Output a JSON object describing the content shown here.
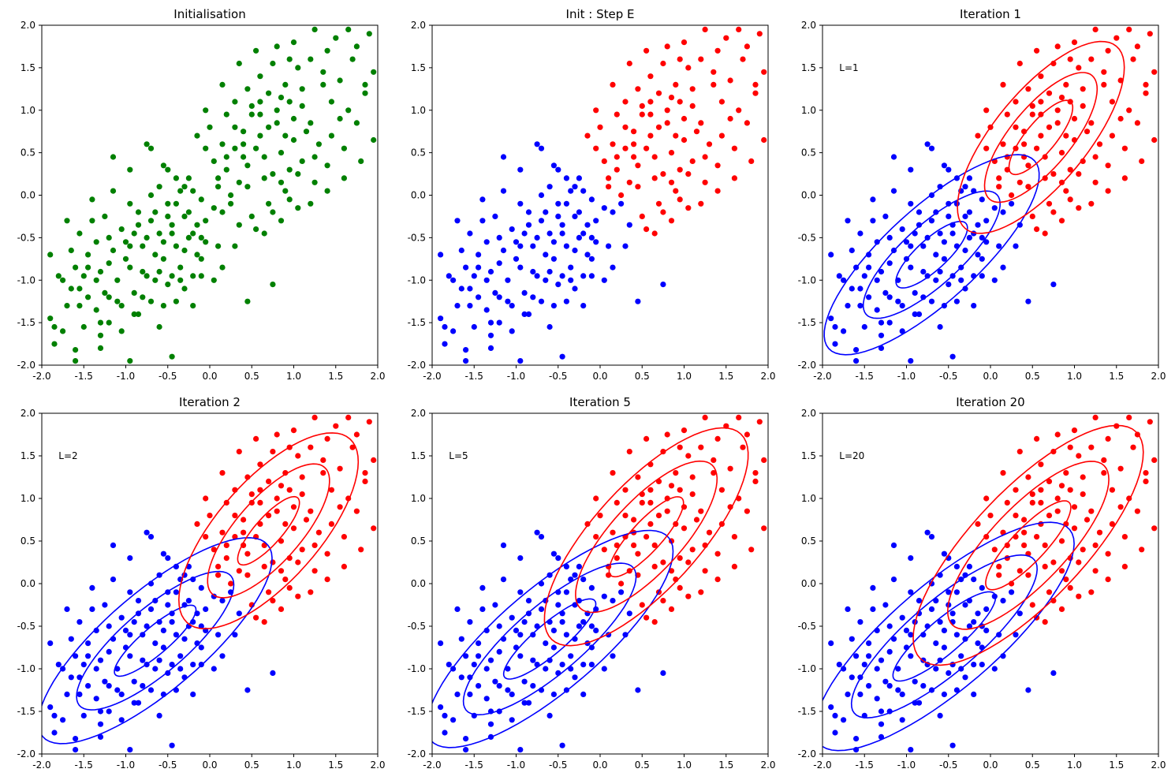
{
  "colors": {
    "green": "#008000",
    "blue": "#0000ff",
    "red": "#ff0000",
    "axis": "#000000"
  },
  "chart_data": [
    {
      "type": "scatter",
      "title": "Initialisation",
      "annotation": "",
      "xlim": [
        -2,
        2
      ],
      "ylim": [
        -2,
        2
      ],
      "xticks": [
        "-2.0",
        "-1.5",
        "-1.0",
        "-0.5",
        "0.0",
        "0.5",
        "1.0",
        "1.5",
        "2.0"
      ],
      "yticks": [
        "-2.0",
        "-1.5",
        "-1.0",
        "-0.5",
        "0.0",
        "0.5",
        "1.0",
        "1.5",
        "2.0"
      ],
      "coloring": "green",
      "ellipses": []
    },
    {
      "type": "scatter",
      "title": "Init : Step E",
      "annotation": "",
      "xlim": [
        -2,
        2
      ],
      "ylim": [
        -2,
        2
      ],
      "xticks": [
        "-2.0",
        "-1.5",
        "-1.0",
        "-0.5",
        "0.0",
        "0.5",
        "1.0",
        "1.5",
        "2.0"
      ],
      "yticks": [
        "-2.0",
        "-1.5",
        "-1.0",
        "-0.5",
        "0.0",
        "0.5",
        "1.0",
        "1.5",
        "2.0"
      ],
      "coloring": "split",
      "ellipses": []
    },
    {
      "type": "scatter",
      "title": "Iteration 1",
      "annotation": "L=1",
      "xlim": [
        -2,
        2
      ],
      "ylim": [
        -2,
        2
      ],
      "xticks": [
        "-2.0",
        "-1.5",
        "-1.0",
        "-0.5",
        "0.0",
        "0.5",
        "1.0",
        "1.5",
        "2.0"
      ],
      "yticks": [
        "-2.0",
        "-1.5",
        "-1.0",
        "-0.5",
        "0.0",
        "0.5",
        "1.0",
        "1.5",
        "2.0"
      ],
      "coloring": "split",
      "ellipses": [
        {
          "cluster": "blue",
          "cx": -0.7,
          "cy": -0.7,
          "rx": 0.55,
          "ry": 0.18,
          "angle": 42
        },
        {
          "cluster": "blue",
          "cx": -0.7,
          "cy": -0.7,
          "rx": 1.05,
          "ry": 0.35,
          "angle": 42
        },
        {
          "cluster": "blue",
          "cx": -0.7,
          "cy": -0.7,
          "rx": 1.65,
          "ry": 0.55,
          "angle": 42
        },
        {
          "cluster": "red",
          "cx": 0.6,
          "cy": 0.68,
          "rx": 0.55,
          "ry": 0.18,
          "angle": 50
        },
        {
          "cluster": "red",
          "cx": 0.6,
          "cy": 0.68,
          "rx": 0.95,
          "ry": 0.36,
          "angle": 50
        },
        {
          "cluster": "red",
          "cx": 0.6,
          "cy": 0.68,
          "rx": 1.4,
          "ry": 0.55,
          "angle": 50
        }
      ]
    },
    {
      "type": "scatter",
      "title": "Iteration 2",
      "annotation": "L=2",
      "xlim": [
        -2,
        2
      ],
      "ylim": [
        -2,
        2
      ],
      "xticks": [
        "-2.0",
        "-1.5",
        "-1.0",
        "-0.5",
        "0.0",
        "0.5",
        "1.0",
        "1.5",
        "2.0"
      ],
      "yticks": [
        "-2.0",
        "-1.5",
        "-1.0",
        "-0.5",
        "0.0",
        "0.5",
        "1.0",
        "1.5",
        "2.0"
      ],
      "coloring": "split",
      "ellipses": [
        {
          "cluster": "blue",
          "cx": -0.65,
          "cy": -0.67,
          "rx": 0.62,
          "ry": 0.16,
          "angle": 40
        },
        {
          "cluster": "blue",
          "cx": -0.65,
          "cy": -0.67,
          "rx": 1.18,
          "ry": 0.38,
          "angle": 40
        },
        {
          "cluster": "blue",
          "cx": -0.65,
          "cy": -0.67,
          "rx": 1.75,
          "ry": 0.58,
          "angle": 40
        },
        {
          "cluster": "red",
          "cx": 0.7,
          "cy": 0.62,
          "rx": 0.52,
          "ry": 0.16,
          "angle": 48
        },
        {
          "cluster": "red",
          "cx": 0.7,
          "cy": 0.62,
          "rx": 1.0,
          "ry": 0.38,
          "angle": 48
        },
        {
          "cluster": "red",
          "cx": 0.7,
          "cy": 0.62,
          "rx": 1.45,
          "ry": 0.6,
          "angle": 48
        }
      ]
    },
    {
      "type": "scatter",
      "title": "Iteration 5",
      "annotation": "L=5",
      "xlim": [
        -2,
        2
      ],
      "ylim": [
        -2,
        2
      ],
      "xticks": [
        "-2.0",
        "-1.5",
        "-1.0",
        "-0.5",
        "0.0",
        "0.5",
        "1.0",
        "1.5",
        "2.0"
      ],
      "yticks": [
        "-2.0",
        "-1.5",
        "-1.0",
        "-0.5",
        "0.0",
        "0.5",
        "1.0",
        "1.5",
        "2.0"
      ],
      "coloring": "split",
      "ellipses": [
        {
          "cluster": "blue",
          "cx": -0.6,
          "cy": -0.65,
          "rx": 0.7,
          "ry": 0.18,
          "angle": 40
        },
        {
          "cluster": "blue",
          "cx": -0.6,
          "cy": -0.65,
          "rx": 1.3,
          "ry": 0.4,
          "angle": 40
        },
        {
          "cluster": "blue",
          "cx": -0.6,
          "cy": -0.65,
          "rx": 1.85,
          "ry": 0.6,
          "angle": 40
        },
        {
          "cluster": "red",
          "cx": 0.55,
          "cy": 0.55,
          "rx": 0.62,
          "ry": 0.18,
          "angle": 47
        },
        {
          "cluster": "red",
          "cx": 0.55,
          "cy": 0.55,
          "rx": 1.15,
          "ry": 0.42,
          "angle": 47
        },
        {
          "cluster": "red",
          "cx": 0.55,
          "cy": 0.55,
          "rx": 1.65,
          "ry": 0.62,
          "angle": 47
        }
      ]
    },
    {
      "type": "scatter",
      "title": "Iteration 20",
      "annotation": "L=20",
      "xlim": [
        -2,
        2
      ],
      "ylim": [
        -2,
        2
      ],
      "xticks": [
        "-2.0",
        "-1.5",
        "-1.0",
        "-0.5",
        "0.0",
        "0.5",
        "1.0",
        "1.5",
        "2.0"
      ],
      "yticks": [
        "-2.0",
        "-1.5",
        "-1.0",
        "-0.5",
        "0.0",
        "0.5",
        "1.0",
        "1.5",
        "2.0"
      ],
      "coloring": "split",
      "ellipses": [
        {
          "cluster": "blue",
          "cx": -0.55,
          "cy": -0.62,
          "rx": 0.78,
          "ry": 0.2,
          "angle": 40
        },
        {
          "cluster": "blue",
          "cx": -0.55,
          "cy": -0.62,
          "rx": 1.4,
          "ry": 0.42,
          "angle": 40
        },
        {
          "cluster": "blue",
          "cx": -0.55,
          "cy": -0.62,
          "rx": 1.95,
          "ry": 0.62,
          "angle": 40
        },
        {
          "cluster": "red",
          "cx": 0.45,
          "cy": 0.45,
          "rx": 0.7,
          "ry": 0.2,
          "angle": 46
        },
        {
          "cluster": "red",
          "cx": 0.45,
          "cy": 0.45,
          "rx": 1.3,
          "ry": 0.45,
          "angle": 46
        },
        {
          "cluster": "red",
          "cx": 0.45,
          "cy": 0.45,
          "rx": 1.85,
          "ry": 0.66,
          "angle": 46
        }
      ]
    }
  ],
  "points": [
    [
      -1.85,
      -1.75
    ],
    [
      -1.75,
      -1.6
    ],
    [
      -1.9,
      -1.45
    ],
    [
      -1.6,
      -1.82
    ],
    [
      -1.5,
      -1.55
    ],
    [
      -1.7,
      -1.3
    ],
    [
      -1.45,
      -1.2
    ],
    [
      -1.55,
      -1.1
    ],
    [
      -1.8,
      -0.95
    ],
    [
      -1.65,
      -0.65
    ],
    [
      -1.9,
      -0.7
    ],
    [
      -1.5,
      -0.95
    ],
    [
      -1.35,
      -1.35
    ],
    [
      -1.3,
      -1.65
    ],
    [
      -1.2,
      -1.5
    ],
    [
      -1.45,
      -0.7
    ],
    [
      -1.7,
      -0.3
    ],
    [
      -1.55,
      -0.45
    ],
    [
      -1.4,
      -0.3
    ],
    [
      -1.3,
      -0.9
    ],
    [
      -1.25,
      -1.15
    ],
    [
      -1.15,
      -0.65
    ],
    [
      -1.1,
      -1.0
    ],
    [
      -1.05,
      -1.3
    ],
    [
      -1.0,
      -0.55
    ],
    [
      -0.95,
      -0.85
    ],
    [
      -0.9,
      -1.15
    ],
    [
      -0.85,
      -0.35
    ],
    [
      -0.8,
      -0.6
    ],
    [
      -0.75,
      -0.95
    ],
    [
      -0.7,
      -1.25
    ],
    [
      -0.65,
      -0.2
    ],
    [
      -0.6,
      -0.45
    ],
    [
      -0.55,
      -0.75
    ],
    [
      -0.5,
      -1.05
    ],
    [
      -0.5,
      -0.1
    ],
    [
      -0.45,
      -0.35
    ],
    [
      -0.4,
      -0.6
    ],
    [
      -0.35,
      -0.85
    ],
    [
      -0.3,
      -1.1
    ],
    [
      -0.3,
      0.1
    ],
    [
      -0.25,
      -0.2
    ],
    [
      -0.2,
      -0.45
    ],
    [
      -0.15,
      -0.7
    ],
    [
      -0.1,
      -0.95
    ],
    [
      -1.15,
      0.45
    ],
    [
      -0.95,
      -0.1
    ],
    [
      -1.05,
      -0.4
    ],
    [
      -0.85,
      -0.2
    ],
    [
      -0.7,
      0.0
    ],
    [
      -1.25,
      -0.25
    ],
    [
      -1.35,
      -0.55
    ],
    [
      -1.6,
      -0.85
    ],
    [
      -0.55,
      0.35
    ],
    [
      -0.4,
      0.2
    ],
    [
      -0.75,
      -0.5
    ],
    [
      -0.95,
      -0.6
    ],
    [
      -1.2,
      -0.8
    ],
    [
      -0.65,
      -0.7
    ],
    [
      -0.45,
      -0.95
    ],
    [
      -0.25,
      -0.5
    ],
    [
      -0.85,
      -1.4
    ],
    [
      -0.6,
      -1.55
    ],
    [
      -0.4,
      -1.25
    ],
    [
      -0.2,
      -1.3
    ],
    [
      -0.05,
      -0.3
    ],
    [
      -0.1,
      -0.05
    ],
    [
      -0.35,
      0.05
    ],
    [
      -0.6,
      0.1
    ],
    [
      -0.95,
      0.3
    ],
    [
      -1.15,
      0.05
    ],
    [
      -1.4,
      -0.05
    ],
    [
      -1.0,
      -0.75
    ],
    [
      -0.8,
      -0.9
    ],
    [
      -0.55,
      -0.55
    ],
    [
      -0.3,
      -0.25
    ],
    [
      -0.15,
      -0.35
    ],
    [
      -0.7,
      -0.3
    ],
    [
      -0.45,
      -0.45
    ],
    [
      -0.2,
      0.05
    ],
    [
      -1.75,
      -1.0
    ],
    [
      -1.55,
      -1.3
    ],
    [
      -1.35,
      -1.0
    ],
    [
      -1.1,
      -1.25
    ],
    [
      -0.9,
      -1.4
    ],
    [
      -0.5,
      -0.25
    ],
    [
      -0.3,
      -0.65
    ],
    [
      -0.05,
      -0.55
    ],
    [
      -0.1,
      -0.75
    ],
    [
      0.05,
      -0.15
    ],
    [
      -0.75,
      0.6
    ],
    [
      -0.7,
      0.55
    ],
    [
      -0.5,
      0.3
    ],
    [
      -0.25,
      0.2
    ],
    [
      -0.4,
      -0.1
    ],
    [
      -0.6,
      -0.9
    ],
    [
      -0.9,
      -0.45
    ],
    [
      -1.2,
      -0.5
    ],
    [
      -1.45,
      -0.85
    ],
    [
      -1.65,
      -1.1
    ],
    [
      -1.3,
      -1.5
    ],
    [
      -1.05,
      -1.6
    ],
    [
      -0.8,
      -1.2
    ],
    [
      -0.55,
      -1.3
    ],
    [
      -0.35,
      -1.0
    ],
    [
      0.05,
      -1.0
    ],
    [
      0.15,
      -0.85
    ],
    [
      0.3,
      -0.6
    ],
    [
      0.45,
      -1.25
    ],
    [
      0.75,
      -1.05
    ],
    [
      -0.95,
      -1.95
    ],
    [
      -0.45,
      -1.9
    ],
    [
      -1.3,
      -1.8
    ],
    [
      -1.6,
      -1.95
    ],
    [
      -1.85,
      -1.55
    ],
    [
      -1.2,
      -1.2
    ],
    [
      -0.65,
      -1.0
    ],
    [
      -0.2,
      -0.95
    ],
    [
      -0.1,
      -0.5
    ],
    [
      0.1,
      -0.6
    ],
    [
      0.1,
      0.1
    ],
    [
      0.2,
      0.3
    ],
    [
      0.3,
      0.55
    ],
    [
      0.4,
      0.75
    ],
    [
      0.5,
      0.95
    ],
    [
      0.6,
      1.1
    ],
    [
      0.7,
      0.8
    ],
    [
      0.8,
      1.0
    ],
    [
      0.9,
      0.7
    ],
    [
      1.0,
      0.9
    ],
    [
      1.1,
      1.05
    ],
    [
      1.2,
      0.85
    ],
    [
      0.25,
      -0.1
    ],
    [
      0.35,
      0.15
    ],
    [
      0.45,
      0.35
    ],
    [
      0.55,
      0.55
    ],
    [
      0.65,
      0.45
    ],
    [
      0.75,
      0.25
    ],
    [
      0.85,
      0.5
    ],
    [
      0.95,
      0.3
    ],
    [
      0.15,
      0.6
    ],
    [
      0.05,
      0.4
    ],
    [
      0.0,
      0.8
    ],
    [
      0.2,
      0.95
    ],
    [
      0.3,
      1.1
    ],
    [
      0.45,
      1.25
    ],
    [
      0.6,
      1.4
    ],
    [
      0.75,
      1.55
    ],
    [
      0.9,
      1.3
    ],
    [
      1.05,
      1.5
    ],
    [
      1.2,
      1.6
    ],
    [
      1.35,
      1.3
    ],
    [
      1.45,
      1.1
    ],
    [
      1.55,
      0.9
    ],
    [
      1.3,
      0.6
    ],
    [
      1.1,
      0.4
    ],
    [
      0.9,
      0.05
    ],
    [
      0.7,
      -0.1
    ],
    [
      0.5,
      -0.25
    ],
    [
      0.35,
      -0.35
    ],
    [
      0.65,
      -0.45
    ],
    [
      0.85,
      -0.3
    ],
    [
      1.05,
      -0.15
    ],
    [
      1.25,
      0.15
    ],
    [
      1.4,
      0.35
    ],
    [
      1.6,
      0.55
    ],
    [
      1.75,
      0.85
    ],
    [
      1.85,
      1.2
    ],
    [
      1.95,
      1.45
    ],
    [
      1.7,
      1.6
    ],
    [
      1.5,
      1.85
    ],
    [
      1.25,
      1.95
    ],
    [
      1.0,
      1.8
    ],
    [
      0.8,
      1.75
    ],
    [
      0.55,
      1.7
    ],
    [
      0.35,
      1.55
    ],
    [
      0.15,
      1.3
    ],
    [
      -0.05,
      1.0
    ],
    [
      -0.15,
      0.7
    ],
    [
      -0.05,
      0.55
    ],
    [
      0.2,
      0.45
    ],
    [
      0.4,
      0.6
    ],
    [
      0.6,
      0.7
    ],
    [
      0.8,
      0.85
    ],
    [
      1.0,
      0.65
    ],
    [
      1.15,
      0.75
    ],
    [
      0.95,
      1.1
    ],
    [
      0.7,
      1.2
    ],
    [
      0.5,
      1.05
    ],
    [
      0.3,
      0.8
    ],
    [
      0.1,
      0.2
    ],
    [
      0.25,
      0.0
    ],
    [
      0.45,
      0.1
    ],
    [
      0.65,
      0.2
    ],
    [
      0.85,
      0.15
    ],
    [
      1.05,
      0.25
    ],
    [
      1.25,
      0.45
    ],
    [
      1.45,
      0.7
    ],
    [
      1.65,
      1.0
    ],
    [
      1.85,
      1.3
    ],
    [
      1.95,
      0.65
    ],
    [
      1.8,
      0.4
    ],
    [
      1.6,
      0.2
    ],
    [
      1.4,
      0.05
    ],
    [
      1.2,
      -0.1
    ],
    [
      0.55,
      -0.4
    ],
    [
      0.75,
      -0.2
    ],
    [
      0.95,
      -0.05
    ],
    [
      0.15,
      -0.2
    ],
    [
      0.4,
      0.45
    ],
    [
      0.6,
      0.95
    ],
    [
      0.85,
      1.15
    ],
    [
      1.1,
      1.25
    ],
    [
      1.35,
      1.45
    ],
    [
      1.55,
      1.35
    ],
    [
      1.75,
      1.75
    ],
    [
      1.9,
      1.9
    ],
    [
      1.65,
      1.95
    ],
    [
      1.4,
      1.7
    ],
    [
      0.95,
      1.6
    ]
  ]
}
